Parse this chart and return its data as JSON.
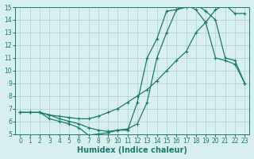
{
  "line1_x": [
    0,
    1,
    2,
    3,
    4,
    5,
    6,
    7,
    8,
    9,
    10,
    11,
    12,
    13,
    14,
    15,
    16,
    17,
    18,
    19,
    20,
    21,
    22,
    23
  ],
  "line1_y": [
    6.7,
    6.7,
    6.7,
    6.2,
    6.0,
    5.8,
    5.5,
    4.9,
    5.0,
    5.1,
    5.3,
    5.3,
    7.5,
    11.0,
    12.5,
    14.7,
    14.8,
    15.2,
    14.8,
    13.8,
    11.0,
    10.8,
    10.5,
    9.0
  ],
  "line2_x": [
    0,
    1,
    2,
    3,
    4,
    5,
    6,
    7,
    8,
    9,
    10,
    11,
    12,
    13,
    14,
    15,
    16,
    17,
    18,
    19,
    20,
    21,
    22,
    23
  ],
  "line2_y": [
    6.7,
    6.7,
    6.7,
    6.5,
    6.4,
    6.3,
    6.2,
    6.2,
    6.4,
    6.7,
    7.0,
    7.5,
    8.0,
    8.5,
    9.2,
    10.0,
    10.8,
    11.5,
    13.0,
    13.8,
    14.8,
    15.2,
    14.5,
    14.5
  ],
  "line3_x": [
    0,
    1,
    2,
    3,
    4,
    5,
    6,
    7,
    8,
    9,
    10,
    11,
    12,
    13,
    14,
    15,
    16,
    17,
    18,
    19,
    20,
    21,
    22,
    23
  ],
  "line3_y": [
    6.7,
    6.7,
    6.7,
    6.5,
    6.2,
    6.0,
    5.8,
    5.5,
    5.3,
    5.2,
    5.3,
    5.4,
    5.8,
    7.5,
    11.0,
    13.0,
    14.8,
    15.0,
    15.2,
    14.7,
    14.0,
    11.0,
    10.8,
    9.0
  ],
  "line_color": "#1a7a6e",
  "bg_color": "#d8eff0",
  "grid_color": "#b0cece",
  "xlabel": "Humidex (Indice chaleur)",
  "xlim": [
    -0.5,
    23.5
  ],
  "ylim": [
    5,
    15
  ],
  "xticks": [
    0,
    1,
    2,
    3,
    4,
    5,
    6,
    7,
    8,
    9,
    10,
    11,
    12,
    13,
    14,
    15,
    16,
    17,
    18,
    19,
    20,
    21,
    22,
    23
  ],
  "yticks": [
    5,
    6,
    7,
    8,
    9,
    10,
    11,
    12,
    13,
    14,
    15
  ],
  "xlabel_fontsize": 7,
  "tick_fontsize": 5.5,
  "marker": "+",
  "markersize": 3,
  "linewidth": 0.9,
  "figsize": [
    3.2,
    2.0
  ],
  "dpi": 100
}
